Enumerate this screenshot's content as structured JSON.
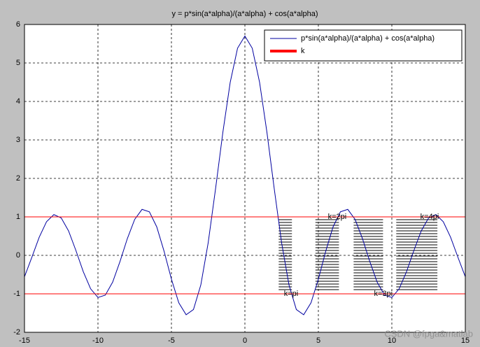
{
  "chart_data": {
    "type": "line",
    "title": "y = p*sin(a*alpha)/(a*alpha) + cos(a*alpha)",
    "x": [
      -15,
      -14.5,
      -14,
      -13.5,
      -13,
      -12.5,
      -12,
      -11.5,
      -11,
      -10.5,
      -10,
      -9.5,
      -9,
      -8.5,
      -8,
      -7.5,
      -7,
      -6.5,
      -6,
      -5.5,
      -5,
      -4.5,
      -4,
      -3.5,
      -3,
      -2.5,
      -2,
      -1.5,
      -1,
      -0.5,
      0,
      0.5,
      1,
      1.5,
      2,
      2.5,
      3,
      3.5,
      4,
      4.5,
      5,
      5.5,
      6,
      6.5,
      7,
      7.5,
      8,
      8.5,
      9,
      9.5,
      10,
      10.5,
      11,
      11.5,
      12,
      12.5,
      13,
      13.5,
      14,
      14.5,
      15
    ],
    "series": [
      {
        "name": "p*sin(a*alpha)/(a*alpha) + cos(a*alpha)",
        "color": "#0000a0",
        "values": [
          -0.556,
          -0.052,
          0.469,
          0.875,
          1.059,
          0.973,
          0.634,
          0.125,
          -0.423,
          -0.869,
          -1.095,
          -1.034,
          -0.696,
          -0.16,
          0.436,
          0.934,
          1.195,
          1.132,
          0.741,
          0.106,
          -0.618,
          -1.232,
          -1.543,
          -1.408,
          -0.769,
          0.324,
          1.721,
          3.196,
          4.495,
          5.384,
          5.7,
          5.384,
          4.495,
          3.196,
          1.721,
          0.324,
          -0.769,
          -1.408,
          -1.543,
          -1.232,
          -0.618,
          0.106,
          0.741,
          1.132,
          1.195,
          0.934,
          0.436,
          -0.16,
          -0.696,
          -1.034,
          -1.095,
          -0.869,
          -0.423,
          0.125,
          0.634,
          0.973,
          1.059,
          0.875,
          0.469,
          -0.052,
          -0.556
        ]
      },
      {
        "name": "k",
        "color": "#ff0000",
        "hlines": [
          1,
          -1
        ]
      }
    ],
    "bands": [
      [
        2.3,
        3.2
      ],
      [
        4.8,
        6.4
      ],
      [
        7.4,
        9.4
      ],
      [
        10.3,
        13.1
      ]
    ],
    "annotations": [
      {
        "text": "k=pi",
        "x": 3.14,
        "y": -1
      },
      {
        "text": "k=2pi",
        "x": 6.28,
        "y": 1
      },
      {
        "text": "k=3pi",
        "x": 9.42,
        "y": -1
      },
      {
        "text": "k=4pi",
        "x": 12.57,
        "y": 1
      }
    ],
    "xlim": [
      -15,
      15
    ],
    "ylim": [
      -2,
      6
    ],
    "xticks": [
      -15,
      -10,
      -5,
      0,
      5,
      10,
      15
    ],
    "yticks": [
      -2,
      -1,
      0,
      1,
      2,
      3,
      4,
      5,
      6
    ],
    "grid": true,
    "legend": "top-right",
    "watermark": "CSDN @fpga&matlab"
  }
}
